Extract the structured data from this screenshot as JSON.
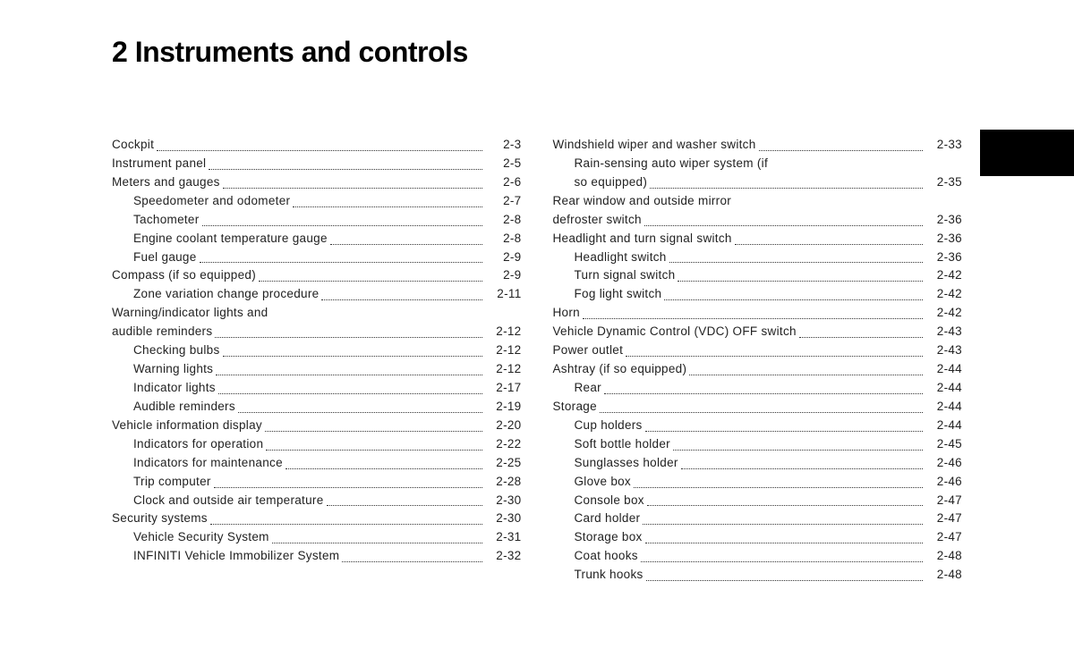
{
  "chapter_title": "2 Instruments and controls",
  "left_column": [
    {
      "text": "Cockpit",
      "page": "2-3",
      "indent": false
    },
    {
      "text": "Instrument panel",
      "page": "2-5",
      "indent": false
    },
    {
      "text": "Meters and gauges",
      "page": "2-6",
      "indent": false
    },
    {
      "text": "Speedometer and odometer",
      "page": "2-7",
      "indent": true
    },
    {
      "text": "Tachometer",
      "page": "2-8",
      "indent": true
    },
    {
      "text": "Engine coolant temperature gauge",
      "page": "2-8",
      "indent": true
    },
    {
      "text": "Fuel gauge",
      "page": "2-9",
      "indent": true
    },
    {
      "text": "Compass (if so equipped)",
      "page": "2-9",
      "indent": false
    },
    {
      "text": "Zone variation change procedure",
      "page": "2-11",
      "indent": true
    },
    {
      "text": "Warning/indicator lights and audible reminders",
      "page": "2-12",
      "indent": false,
      "twoLine": true,
      "line1": "Warning/indicator lights and",
      "line2": "audible reminders"
    },
    {
      "text": "Checking bulbs",
      "page": "2-12",
      "indent": true
    },
    {
      "text": "Warning lights",
      "page": "2-12",
      "indent": true
    },
    {
      "text": "Indicator lights",
      "page": "2-17",
      "indent": true
    },
    {
      "text": "Audible reminders",
      "page": "2-19",
      "indent": true
    },
    {
      "text": "Vehicle information display",
      "page": "2-20",
      "indent": false
    },
    {
      "text": "Indicators for operation",
      "page": "2-22",
      "indent": true
    },
    {
      "text": "Indicators for maintenance",
      "page": "2-25",
      "indent": true
    },
    {
      "text": "Trip computer",
      "page": "2-28",
      "indent": true
    },
    {
      "text": "Clock and outside air temperature",
      "page": "2-30",
      "indent": true
    },
    {
      "text": "Security systems",
      "page": "2-30",
      "indent": false
    },
    {
      "text": "Vehicle Security System",
      "page": "2-31",
      "indent": true
    },
    {
      "text": "INFINITI Vehicle Immobilizer System",
      "page": "2-32",
      "indent": true
    }
  ],
  "right_column": [
    {
      "text": "Windshield wiper and washer switch",
      "page": "2-33",
      "indent": false
    },
    {
      "text": "Rain-sensing auto wiper system (if so equipped)",
      "page": "2-35",
      "indent": true,
      "twoLine": true,
      "line1": "Rain-sensing auto wiper system (if",
      "line2": "so equipped)"
    },
    {
      "text": "Rear window and outside mirror defroster switch",
      "page": "2-36",
      "indent": false,
      "twoLine": true,
      "line1": "Rear window and outside mirror",
      "line2": "defroster switch"
    },
    {
      "text": "Headlight and turn signal switch",
      "page": "2-36",
      "indent": false
    },
    {
      "text": "Headlight switch",
      "page": "2-36",
      "indent": true
    },
    {
      "text": "Turn signal switch",
      "page": "2-42",
      "indent": true
    },
    {
      "text": "Fog light switch",
      "page": "2-42",
      "indent": true
    },
    {
      "text": "Horn",
      "page": "2-42",
      "indent": false
    },
    {
      "text": "Vehicle Dynamic Control (VDC) OFF switch",
      "page": "2-43",
      "indent": false
    },
    {
      "text": "Power outlet",
      "page": "2-43",
      "indent": false
    },
    {
      "text": "Ashtray (if so equipped)",
      "page": "2-44",
      "indent": false
    },
    {
      "text": "Rear",
      "page": "2-44",
      "indent": true
    },
    {
      "text": "Storage",
      "page": "2-44",
      "indent": false
    },
    {
      "text": "Cup holders",
      "page": "2-44",
      "indent": true
    },
    {
      "text": "Soft bottle holder",
      "page": "2-45",
      "indent": true
    },
    {
      "text": "Sunglasses holder",
      "page": "2-46",
      "indent": true
    },
    {
      "text": "Glove box",
      "page": "2-46",
      "indent": true
    },
    {
      "text": "Console box",
      "page": "2-47",
      "indent": true
    },
    {
      "text": "Card holder",
      "page": "2-47",
      "indent": true
    },
    {
      "text": "Storage box",
      "page": "2-47",
      "indent": true
    },
    {
      "text": "Coat hooks",
      "page": "2-48",
      "indent": true
    },
    {
      "text": "Trunk hooks",
      "page": "2-48",
      "indent": true
    }
  ]
}
